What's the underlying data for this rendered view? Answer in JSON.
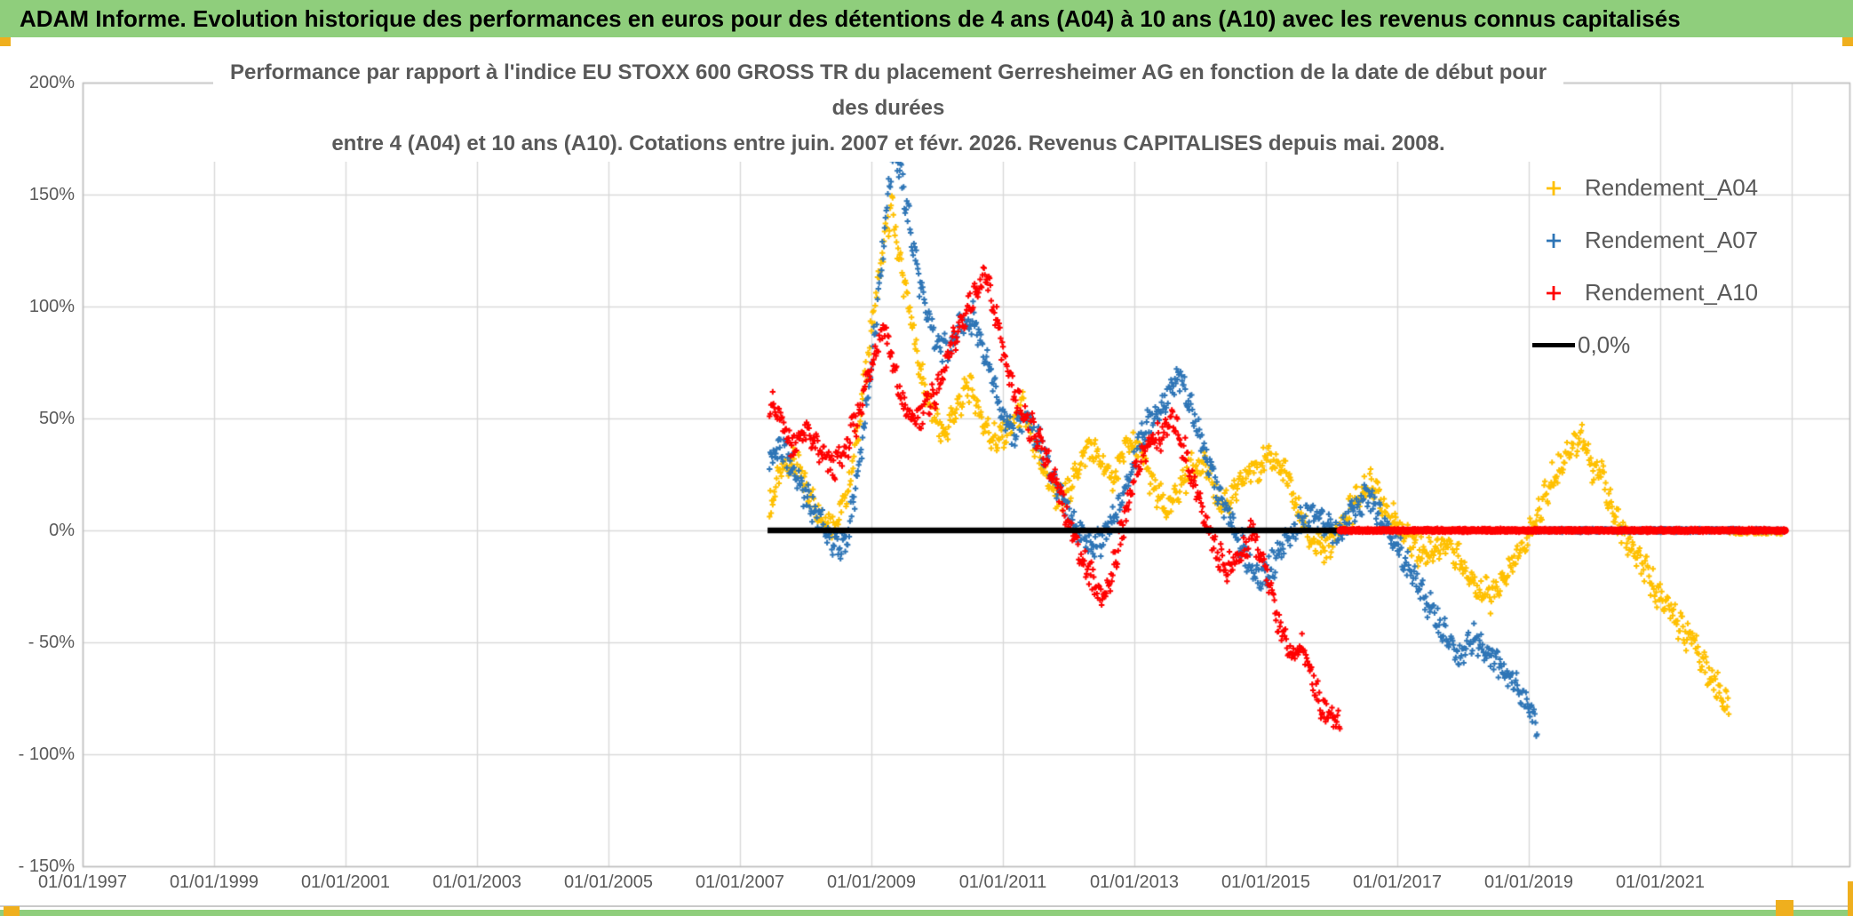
{
  "header": {
    "title": "ADAM Informe. Evolution historique des performances en euros pour des détentions de 4 ans (A04) à 10 ans (A10) avec les revenus connus capitalisés"
  },
  "chart_data": {
    "type": "scatter",
    "title_line1": "Performance par rapport à l'indice EU STOXX 600 GROSS TR  du placement Gerresheimer AG en fonction de la date de début pour des durées",
    "title_line2": "entre 4 (A04) et 10 ans (A10). Cotations entre juin. 2007 et févr. 2026. Revenus CAPITALISES depuis mai. 2008.",
    "x_axis": {
      "tick_labels": [
        "01/01/1997",
        "01/01/1999",
        "01/01/2001",
        "01/01/2003",
        "01/01/2005",
        "01/01/2007",
        "01/01/2009",
        "01/01/2011",
        "01/01/2013",
        "01/01/2015",
        "01/01/2017",
        "01/01/2019",
        "01/01/2021"
      ],
      "tick_years": [
        1997,
        1999,
        2001,
        2003,
        2005,
        2007,
        2009,
        2011,
        2013,
        2015,
        2017,
        2019,
        2021
      ],
      "gridline_years": [
        1997,
        1999,
        2001,
        2003,
        2005,
        2007,
        2009,
        2011,
        2013,
        2015,
        2017,
        2019,
        2021,
        2023
      ],
      "range_years": [
        1997,
        2023.88
      ]
    },
    "y_axis": {
      "tick_labels": [
        "200%",
        "150%",
        "100%",
        "50%",
        "0%",
        "- 50%",
        "- 100%",
        "- 150%"
      ],
      "tick_values": [
        200,
        150,
        100,
        50,
        0,
        -50,
        -100,
        -150
      ],
      "range": [
        -150,
        200
      ],
      "unit": "percent"
    },
    "legend": {
      "position": "top-right",
      "items": [
        "Rendement_A04",
        "Rendement_A07",
        "Rendement_A10",
        "0,0%"
      ]
    },
    "grid": true,
    "marker": "plus",
    "series": [
      {
        "name": "Rendement_A04",
        "color": "#FFC000",
        "keypoints_year_pct": [
          [
            2007.45,
            10
          ],
          [
            2007.6,
            25
          ],
          [
            2007.8,
            32
          ],
          [
            2008.0,
            20
          ],
          [
            2008.2,
            8
          ],
          [
            2008.45,
            3
          ],
          [
            2008.65,
            18
          ],
          [
            2008.85,
            55
          ],
          [
            2009.0,
            90
          ],
          [
            2009.15,
            120
          ],
          [
            2009.3,
            145
          ],
          [
            2009.45,
            118
          ],
          [
            2009.6,
            95
          ],
          [
            2009.75,
            70
          ],
          [
            2009.9,
            55
          ],
          [
            2010.1,
            42
          ],
          [
            2010.3,
            55
          ],
          [
            2010.5,
            65
          ],
          [
            2010.7,
            48
          ],
          [
            2010.9,
            40
          ],
          [
            2011.1,
            45
          ],
          [
            2011.3,
            55
          ],
          [
            2011.5,
            35
          ],
          [
            2011.7,
            22
          ],
          [
            2011.9,
            12
          ],
          [
            2012.1,
            25
          ],
          [
            2012.3,
            38
          ],
          [
            2012.5,
            30
          ],
          [
            2012.7,
            22
          ],
          [
            2012.9,
            40
          ],
          [
            2013.1,
            35
          ],
          [
            2013.3,
            18
          ],
          [
            2013.5,
            8
          ],
          [
            2013.7,
            20
          ],
          [
            2013.9,
            30
          ],
          [
            2014.1,
            28
          ],
          [
            2014.3,
            12
          ],
          [
            2014.5,
            15
          ],
          [
            2014.7,
            25
          ],
          [
            2014.9,
            30
          ],
          [
            2015.1,
            32
          ],
          [
            2015.3,
            25
          ],
          [
            2015.5,
            8
          ],
          [
            2015.7,
            -5
          ],
          [
            2015.9,
            -10
          ],
          [
            2016.1,
            0
          ],
          [
            2016.35,
            12
          ],
          [
            2016.6,
            22
          ],
          [
            2016.8,
            12
          ],
          [
            2017.0,
            2
          ],
          [
            2017.2,
            -5
          ],
          [
            2017.4,
            -10
          ],
          [
            2017.6,
            -8
          ],
          [
            2017.8,
            -5
          ],
          [
            2018.0,
            -15
          ],
          [
            2018.2,
            -25
          ],
          [
            2018.45,
            -30
          ],
          [
            2018.7,
            -18
          ],
          [
            2018.9,
            -8
          ],
          [
            2019.1,
            5
          ],
          [
            2019.35,
            22
          ],
          [
            2019.6,
            36
          ],
          [
            2019.8,
            42
          ],
          [
            2019.95,
            28
          ],
          [
            2020.1,
            27
          ],
          [
            2020.3,
            5
          ],
          [
            2020.5,
            -5
          ],
          [
            2020.7,
            -15
          ],
          [
            2020.9,
            -25
          ],
          [
            2021.1,
            -33
          ],
          [
            2021.3,
            -42
          ],
          [
            2021.5,
            -50
          ],
          [
            2021.7,
            -62
          ],
          [
            2021.9,
            -72
          ],
          [
            2022.05,
            -80
          ]
        ]
      },
      {
        "name": "Rendement_A07",
        "color": "#2E75B6",
        "keypoints_year_pct": [
          [
            2007.45,
            30
          ],
          [
            2007.6,
            38
          ],
          [
            2007.8,
            28
          ],
          [
            2008.0,
            15
          ],
          [
            2008.2,
            5
          ],
          [
            2008.4,
            -5
          ],
          [
            2008.6,
            -8
          ],
          [
            2008.8,
            25
          ],
          [
            2008.95,
            60
          ],
          [
            2009.1,
            105
          ],
          [
            2009.25,
            150
          ],
          [
            2009.35,
            172
          ],
          [
            2009.5,
            150
          ],
          [
            2009.65,
            125
          ],
          [
            2009.8,
            100
          ],
          [
            2009.95,
            88
          ],
          [
            2010.15,
            78
          ],
          [
            2010.35,
            92
          ],
          [
            2010.55,
            95
          ],
          [
            2010.75,
            78
          ],
          [
            2010.95,
            55
          ],
          [
            2011.15,
            42
          ],
          [
            2011.35,
            52
          ],
          [
            2011.55,
            40
          ],
          [
            2011.75,
            25
          ],
          [
            2011.95,
            10
          ],
          [
            2012.15,
            0
          ],
          [
            2012.35,
            -8
          ],
          [
            2012.55,
            -3
          ],
          [
            2012.75,
            8
          ],
          [
            2012.95,
            28
          ],
          [
            2013.15,
            45
          ],
          [
            2013.4,
            55
          ],
          [
            2013.7,
            68
          ],
          [
            2013.9,
            52
          ],
          [
            2014.1,
            32
          ],
          [
            2014.3,
            15
          ],
          [
            2014.5,
            2
          ],
          [
            2014.7,
            -12
          ],
          [
            2014.9,
            -22
          ],
          [
            2015.1,
            -15
          ],
          [
            2015.3,
            -5
          ],
          [
            2015.5,
            2
          ],
          [
            2015.7,
            8
          ],
          [
            2015.9,
            2
          ],
          [
            2016.1,
            -3
          ],
          [
            2016.3,
            8
          ],
          [
            2016.55,
            15
          ],
          [
            2016.8,
            5
          ],
          [
            2017.0,
            -8
          ],
          [
            2017.2,
            -18
          ],
          [
            2017.45,
            -32
          ],
          [
            2017.7,
            -45
          ],
          [
            2017.95,
            -58
          ],
          [
            2018.15,
            -48
          ],
          [
            2018.4,
            -55
          ],
          [
            2018.6,
            -60
          ],
          [
            2018.8,
            -68
          ],
          [
            2019.0,
            -80
          ],
          [
            2019.13,
            -87
          ]
        ]
      },
      {
        "name": "Rendement_A10",
        "color": "#FF0000",
        "keypoints_year_pct": [
          [
            2007.45,
            58
          ],
          [
            2007.6,
            50
          ],
          [
            2007.8,
            38
          ],
          [
            2008.0,
            45
          ],
          [
            2008.2,
            35
          ],
          [
            2008.4,
            28
          ],
          [
            2008.6,
            35
          ],
          [
            2008.8,
            52
          ],
          [
            2009.0,
            75
          ],
          [
            2009.2,
            92
          ],
          [
            2009.35,
            70
          ],
          [
            2009.5,
            55
          ],
          [
            2009.65,
            48
          ],
          [
            2009.8,
            55
          ],
          [
            2010.0,
            62
          ],
          [
            2010.2,
            80
          ],
          [
            2010.4,
            95
          ],
          [
            2010.6,
            108
          ],
          [
            2010.75,
            112
          ],
          [
            2010.9,
            95
          ],
          [
            2011.05,
            72
          ],
          [
            2011.2,
            58
          ],
          [
            2011.4,
            48
          ],
          [
            2011.6,
            38
          ],
          [
            2011.8,
            20
          ],
          [
            2012.0,
            5
          ],
          [
            2012.2,
            -12
          ],
          [
            2012.4,
            -25
          ],
          [
            2012.55,
            -30
          ],
          [
            2012.7,
            -15
          ],
          [
            2012.85,
            5
          ],
          [
            2013.0,
            25
          ],
          [
            2013.2,
            38
          ],
          [
            2013.4,
            42
          ],
          [
            2013.6,
            50
          ],
          [
            2013.8,
            32
          ],
          [
            2014.0,
            12
          ],
          [
            2014.2,
            -5
          ],
          [
            2014.4,
            -18
          ],
          [
            2014.6,
            -12
          ],
          [
            2014.8,
            -2
          ],
          [
            2015.0,
            -18
          ],
          [
            2015.2,
            -42
          ],
          [
            2015.4,
            -58
          ],
          [
            2015.55,
            -50
          ],
          [
            2015.7,
            -65
          ],
          [
            2015.85,
            -78
          ],
          [
            2016.0,
            -84
          ],
          [
            2016.13,
            -85
          ]
        ]
      }
    ],
    "zero_line": {
      "label": "0,0%",
      "value_pct": 0,
      "black_segment_years": [
        2007.42,
        2016.13
      ],
      "red_segment_years": [
        2016.13,
        2022.9
      ]
    },
    "zero_filled_tails": [
      {
        "series": "Rendement_A04",
        "from": 2022.05,
        "to": 2022.88
      },
      {
        "series": "Rendement_A07",
        "from": 2019.13,
        "to": 2022.88
      },
      {
        "series": "Rendement_A10",
        "from": 2016.13,
        "to": 2022.88
      }
    ]
  },
  "colors": {
    "header_bg": "#8FCE7C",
    "bottom_bar": "#8FCE7C",
    "accent_orange": "#EFAF1E",
    "series_a04": "#FFC000",
    "series_a07": "#2E75B6",
    "series_a10": "#FF0000",
    "zero_line_black": "#000000",
    "zero_line_red": "#FF0000",
    "grid": "#D9D9D9",
    "axis_border": "#BFBFBF",
    "text_gray": "#595959",
    "header_text": "#000000"
  }
}
